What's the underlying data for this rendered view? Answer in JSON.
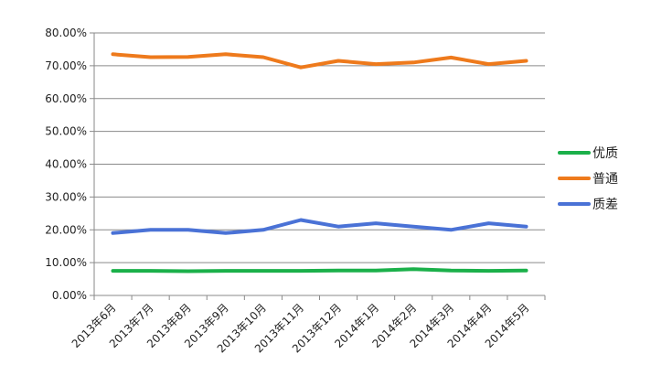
{
  "chart_data": {
    "type": "line",
    "title": "",
    "xlabel": "",
    "ylabel": "",
    "categories": [
      "2013年6月",
      "2013年7月",
      "2013年8月",
      "2013年9月",
      "2013年10月",
      "2013年11月",
      "2013年12月",
      "2014年1月",
      "2014年2月",
      "2014年3月",
      "2014年4月",
      "2014年5月"
    ],
    "ylim": [
      0,
      80
    ],
    "yticks": [
      "0.00%",
      "10.00%",
      "20.00%",
      "30.00%",
      "40.00%",
      "50.00%",
      "60.00%",
      "70.00%",
      "80.00%"
    ],
    "grid": true,
    "legend_position": "right",
    "series": [
      {
        "name": "优质",
        "color": "#1bb04a",
        "values": [
          7.5,
          7.5,
          7.4,
          7.5,
          7.5,
          7.5,
          7.6,
          7.6,
          8.0,
          7.6,
          7.5,
          7.6
        ]
      },
      {
        "name": "普通",
        "color": "#ee7a1c",
        "values": [
          73.5,
          72.6,
          72.7,
          73.5,
          72.6,
          69.5,
          71.5,
          70.5,
          71.0,
          72.5,
          70.5,
          71.5
        ]
      },
      {
        "name": "质差",
        "color": "#4a72d6",
        "values": [
          19.0,
          20.0,
          20.0,
          19.0,
          20.0,
          23.0,
          21.0,
          22.0,
          21.0,
          20.0,
          22.0,
          21.0
        ]
      }
    ]
  }
}
